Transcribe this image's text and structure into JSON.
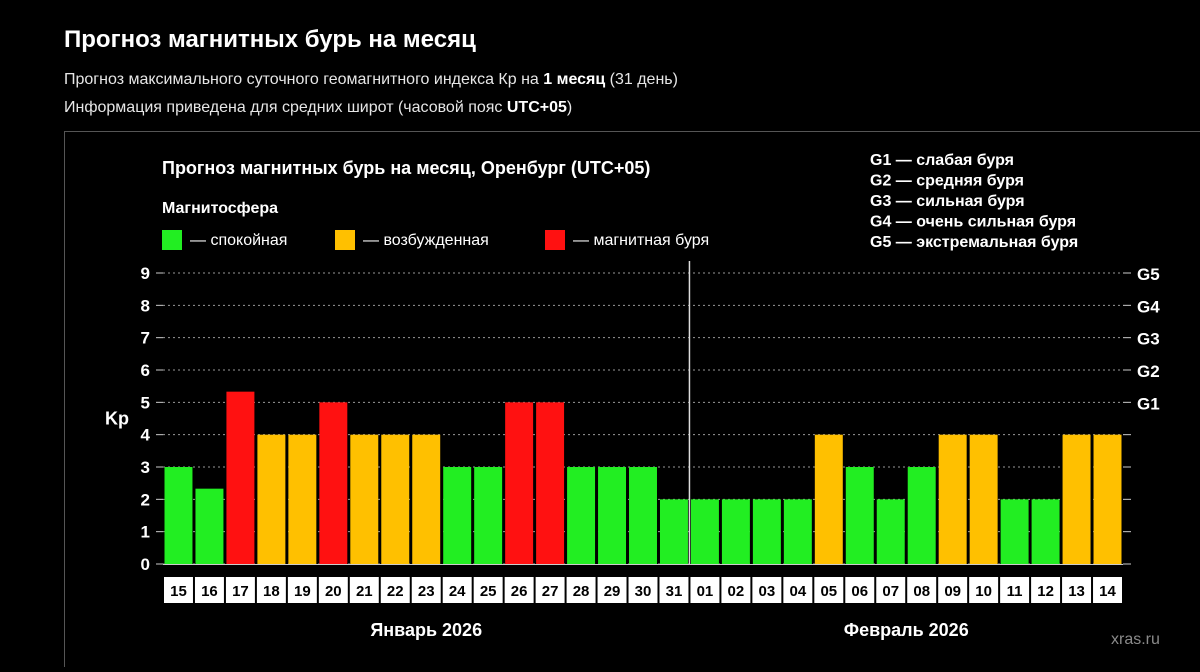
{
  "page": {
    "title": "Прогноз магнитных бурь на месяц",
    "line1": {
      "pre": "Прогноз максимального суточного геомагнитного индекса Кр на ",
      "bold": "1 месяц",
      "post": " (31 день)"
    },
    "line2": {
      "pre": "Информация приведена для средних широт (часовой пояс ",
      "bold": "UTC+05",
      "post": ")"
    }
  },
  "chart_data": {
    "type": "bar",
    "title": "Прогноз магнитных бурь на месяц, Оренбург (UTC+05)",
    "legend_title": "Магнитосфера",
    "legend": [
      {
        "label": "— спокойная",
        "color": "#22ee22"
      },
      {
        "label": "— возбужденная",
        "color": "#ffc000"
      },
      {
        "label": "— магнитная буря",
        "color": "#ff1111"
      }
    ],
    "storm_levels": [
      "G1 — слабая буря",
      "G2 — средняя буря",
      "G3 — сильная буря",
      "G4 — очень сильная буря",
      "G5 — экстремальная буря"
    ],
    "ylabel": "Kp",
    "ylim": [
      0,
      9
    ],
    "yticks": [
      0,
      1,
      2,
      3,
      4,
      5,
      6,
      7,
      8,
      9
    ],
    "right_ticks": [
      {
        "value": 5,
        "label": "G1"
      },
      {
        "value": 6,
        "label": "G2"
      },
      {
        "value": 7,
        "label": "G3"
      },
      {
        "value": 8,
        "label": "G4"
      },
      {
        "value": 9,
        "label": "G5"
      }
    ],
    "categories": [
      "15",
      "16",
      "17",
      "18",
      "19",
      "20",
      "21",
      "22",
      "23",
      "24",
      "25",
      "26",
      "27",
      "28",
      "29",
      "30",
      "31",
      "01",
      "02",
      "03",
      "04",
      "05",
      "06",
      "07",
      "08",
      "09",
      "10",
      "11",
      "12",
      "13",
      "14"
    ],
    "values": [
      3,
      2.33,
      5.33,
      4,
      4,
      5,
      4,
      4,
      4,
      3,
      3,
      5,
      5,
      3,
      3,
      3,
      2,
      2,
      2,
      2,
      2,
      4,
      3,
      2,
      3,
      4,
      4,
      2,
      2,
      4,
      4
    ],
    "groups": [
      {
        "label": "Январь 2026",
        "start": 0,
        "count": 17
      },
      {
        "label": "Февраль 2026",
        "start": 17,
        "count": 14
      }
    ],
    "watermark": "xras.ru"
  }
}
